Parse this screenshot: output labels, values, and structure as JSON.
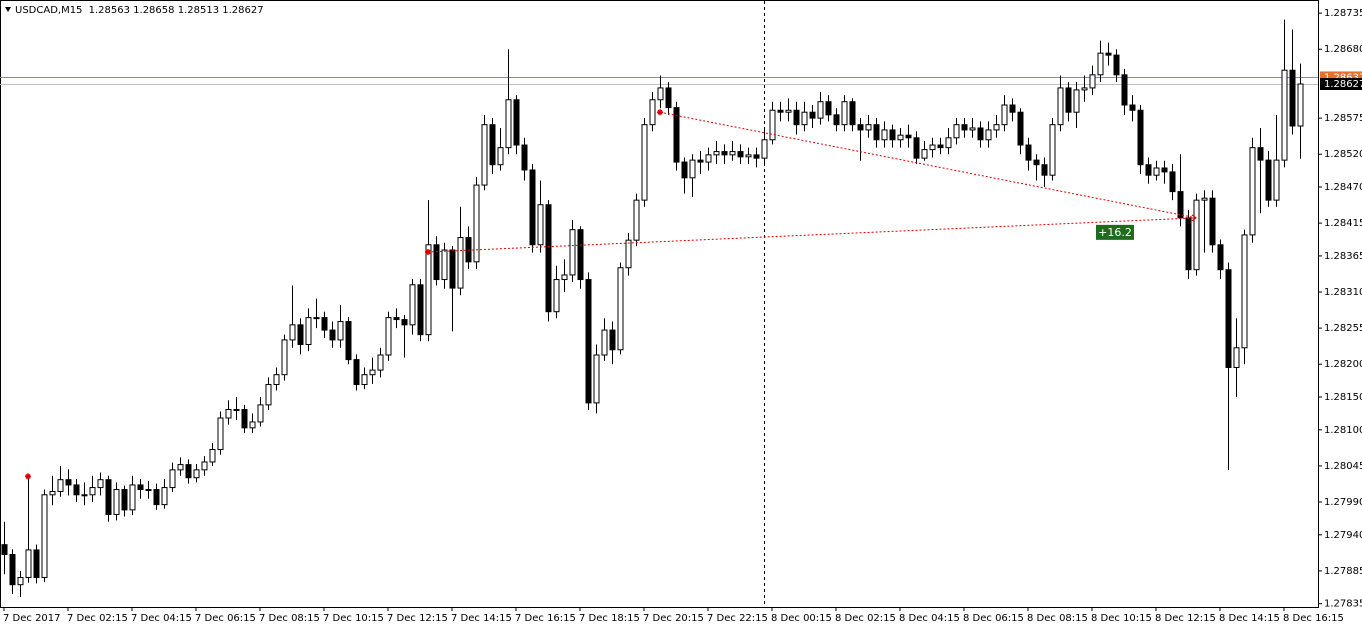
{
  "chart_data": {
    "type": "candlestick",
    "symbol": "USDCAD,M15",
    "categories": [
      "7 Dec 2017",
      null,
      null,
      null,
      null,
      null,
      null,
      null,
      "7 Dec 02:15",
      null,
      null,
      null,
      null,
      null,
      null,
      null,
      "7 Dec 04:15",
      null,
      null,
      null,
      null,
      null,
      null,
      null,
      "7 Dec 06:15",
      null,
      null,
      null,
      null,
      null,
      null,
      null,
      "7 Dec 08:15",
      null,
      null,
      null,
      null,
      null,
      null,
      null,
      "7 Dec 10:15",
      null,
      null,
      null,
      null,
      null,
      null,
      null,
      "7 Dec 12:15",
      null,
      null,
      null,
      null,
      null,
      null,
      null,
      "7 Dec 14:15",
      null,
      null,
      null,
      null,
      null,
      null,
      null,
      "7 Dec 16:15",
      null,
      null,
      null,
      null,
      null,
      null,
      null,
      "7 Dec 18:15",
      null,
      null,
      null,
      null,
      null,
      null,
      null,
      "7 Dec 20:15",
      null,
      null,
      null,
      null,
      null,
      null,
      null,
      "7 Dec 22:15",
      null,
      null,
      null,
      null,
      null,
      null,
      null,
      "8 Dec 00:15",
      null,
      null,
      null,
      null,
      null,
      null,
      null,
      "8 Dec 02:15",
      null,
      null,
      null,
      null,
      null,
      null,
      null,
      "8 Dec 04:15",
      null,
      null,
      null,
      null,
      null,
      null,
      null,
      "8 Dec 06:15",
      null,
      null,
      null,
      null,
      null,
      null,
      null,
      "8 Dec 08:15",
      null,
      null,
      null,
      null,
      null,
      null,
      null,
      "8 Dec 10:15",
      null,
      null,
      null,
      null,
      null,
      null,
      null,
      "8 Dec 12:15",
      null,
      null,
      null,
      null,
      null,
      null,
      null,
      "8 Dec 14:15",
      null,
      null,
      null,
      null,
      null,
      null,
      null,
      "8 Dec 16:15",
      null,
      null
    ],
    "open": [
      1.27925,
      1.2791,
      1.27864,
      1.27875,
      1.27917,
      1.27875,
      1.28001,
      1.28006,
      1.28024,
      1.28016,
      1.28001,
      1.28001,
      1.28012,
      1.28024,
      1.27971,
      1.28009,
      1.27978,
      1.28016,
      1.28009,
      1.28009,
      1.27986,
      1.28012,
      1.28039,
      1.28047,
      1.28027,
      1.28039,
      1.28051,
      1.2807,
      1.28118,
      1.28131,
      1.28131,
      1.28103,
      1.28112,
      1.28138,
      1.28169,
      1.28184,
      1.28237,
      1.2826,
      1.2823,
      1.28271,
      1.28271,
      1.28252,
      1.28237,
      1.28265,
      1.28207,
      1.28169,
      1.28184,
      1.28191,
      1.28214,
      1.28271,
      1.28268,
      1.2826,
      1.28321,
      1.28245,
      1.28382,
      1.28329,
      1.28374,
      1.28316,
      1.28393,
      1.28356,
      1.28473,
      1.28565,
      1.28504,
      1.2853,
      1.28603,
      1.28534,
      1.28496,
      1.28382,
      1.28443,
      1.2828,
      1.28329,
      1.28336,
      1.28405,
      1.28329,
      1.28141,
      1.28214,
      1.28252,
      1.28222,
      1.28347,
      1.28389,
      1.2845,
      1.28565,
      1.28603,
      1.28621,
      1.28591,
      1.28508,
      1.28484,
      1.28511,
      1.28508,
      1.28519,
      1.28524,
      1.28519,
      1.28524,
      1.28516,
      1.28519,
      1.28514,
      1.28542,
      1.28587,
      1.28584,
      1.28587,
      1.28565,
      1.28584,
      1.28575,
      1.286,
      1.2858,
      1.28565,
      1.286,
      1.28565,
      1.28557,
      1.28565,
      1.28542,
      1.28557,
      1.28542,
      1.28549,
      1.28545,
      1.28514,
      1.28527,
      1.28534,
      1.2853,
      1.28545,
      1.28565,
      1.28557,
      1.2856,
      1.28542,
      1.28557,
      1.28565,
      1.28595,
      1.28584,
      1.28534,
      1.28511,
      1.28504,
      1.28488,
      1.28565,
      1.28621,
      1.28584,
      1.28618,
      1.28621,
      1.28641,
      1.28674,
      1.28671,
      1.28641,
      1.28595,
      1.28587,
      1.28504,
      1.28488,
      1.28499,
      1.28493,
      1.28463,
      1.28423,
      1.28344,
      1.2845,
      1.28453,
      1.28382,
      1.28344,
      1.28195,
      1.28225,
      1.28397,
      1.2853,
      1.28511,
      1.2845,
      1.28511,
      1.28648,
      1.28563
    ],
    "high": [
      1.2796,
      1.27918,
      1.27885,
      1.28029,
      1.27925,
      1.28009,
      1.2803,
      1.28045,
      1.2804,
      1.28025,
      1.2802,
      1.2803,
      1.28035,
      1.2803,
      1.2802,
      1.28015,
      1.2803,
      1.28025,
      1.28022,
      1.28018,
      1.28025,
      1.2805,
      1.28058,
      1.28055,
      1.28048,
      1.2806,
      1.2808,
      1.28128,
      1.28145,
      1.2815,
      1.28138,
      1.28125,
      1.2815,
      1.2818,
      1.28195,
      1.28245,
      1.2832,
      1.2827,
      1.28285,
      1.283,
      1.2828,
      1.28265,
      1.2829,
      1.28272,
      1.28215,
      1.28195,
      1.2821,
      1.28225,
      1.2828,
      1.28285,
      1.28275,
      1.2833,
      1.2833,
      1.2845,
      1.28395,
      1.28385,
      1.2838,
      1.2844,
      1.2841,
      1.28485,
      1.2858,
      1.28575,
      1.2856,
      1.2868,
      1.2861,
      1.28545,
      1.28505,
      1.2848,
      1.2845,
      1.2835,
      1.2836,
      1.2842,
      1.2841,
      1.2834,
      1.2823,
      1.2827,
      1.28265,
      1.28355,
      1.284,
      1.2846,
      1.28575,
      1.28615,
      1.2864,
      1.2863,
      1.286,
      1.28515,
      1.2852,
      1.28525,
      1.2853,
      1.2854,
      1.28535,
      1.2854,
      1.28535,
      1.2853,
      1.2853,
      1.2856,
      1.286,
      1.286,
      1.28605,
      1.286,
      1.286,
      1.28595,
      1.28615,
      1.2861,
      1.2859,
      1.2861,
      1.28605,
      1.28575,
      1.2858,
      1.28575,
      1.2857,
      1.28565,
      1.2856,
      1.28565,
      1.28555,
      1.2854,
      1.28545,
      1.28545,
      1.2856,
      1.28575,
      1.28575,
      1.28575,
      1.2857,
      1.2857,
      1.2858,
      1.2861,
      1.28605,
      1.2859,
      1.28545,
      1.2852,
      1.28515,
      1.28575,
      1.2864,
      1.2863,
      1.2863,
      1.2864,
      1.28655,
      1.28693,
      1.2869,
      1.2868,
      1.2865,
      1.2861,
      1.28595,
      1.28515,
      1.2851,
      1.2851,
      1.28505,
      1.2852,
      1.28435,
      1.2846,
      1.28465,
      1.28465,
      1.2839,
      1.28355,
      1.2827,
      1.28405,
      1.28545,
      1.2856,
      1.28525,
      1.2858,
      1.28725,
      1.2871,
      1.28658
    ],
    "low": [
      1.2788,
      1.2785,
      1.27845,
      1.27867,
      1.27866,
      1.27868,
      1.27985,
      1.27998,
      1.28,
      1.2799,
      1.27985,
      1.2799,
      1.28,
      1.2796,
      1.27962,
      1.27968,
      1.2797,
      1.27995,
      1.27995,
      1.27978,
      1.2798,
      1.28005,
      1.2803,
      1.28018,
      1.2802,
      1.2803,
      1.28045,
      1.28062,
      1.28108,
      1.28115,
      1.28095,
      1.28095,
      1.28105,
      1.2813,
      1.2816,
      1.28175,
      1.28225,
      1.28215,
      1.2822,
      1.28255,
      1.2824,
      1.28225,
      1.28225,
      1.282,
      1.2816,
      1.28162,
      1.2817,
      1.2818,
      1.28205,
      1.28255,
      1.2821,
      1.28245,
      1.28235,
      1.28235,
      1.2832,
      1.28315,
      1.2825,
      1.28305,
      1.28345,
      1.28345,
      1.28465,
      1.2849,
      1.28495,
      1.2852,
      1.2852,
      1.2848,
      1.2837,
      1.2837,
      1.28265,
      1.2827,
      1.2831,
      1.28325,
      1.28315,
      1.2813,
      1.28125,
      1.28205,
      1.282,
      1.28215,
      1.28335,
      1.2838,
      1.2844,
      1.28555,
      1.2859,
      1.2858,
      1.28495,
      1.2846,
      1.28455,
      1.2849,
      1.28495,
      1.28505,
      1.28505,
      1.2851,
      1.28505,
      1.28505,
      1.285,
      1.28505,
      1.28535,
      1.2857,
      1.2857,
      1.2855,
      1.28555,
      1.2856,
      1.28565,
      1.2857,
      1.28555,
      1.28555,
      1.28555,
      1.2851,
      1.28545,
      1.2853,
      1.2853,
      1.2853,
      1.2853,
      1.2853,
      1.28505,
      1.2851,
      1.28515,
      1.2852,
      1.2852,
      1.28535,
      1.28545,
      1.28545,
      1.2853,
      1.2853,
      1.28545,
      1.28555,
      1.2857,
      1.2852,
      1.28495,
      1.2848,
      1.2847,
      1.2848,
      1.28555,
      1.2857,
      1.2856,
      1.286,
      1.2861,
      1.2863,
      1.28655,
      1.2863,
      1.2858,
      1.2857,
      1.2849,
      1.28475,
      1.2848,
      1.28475,
      1.2845,
      1.2841,
      1.2833,
      1.28335,
      1.2837,
      1.2837,
      1.2833,
      1.28039,
      1.2815,
      1.282,
      1.28385,
      1.2843,
      1.2844,
      1.2844,
      1.285,
      1.2855,
      1.28513
    ],
    "close": [
      1.2791,
      1.27864,
      1.27875,
      1.27917,
      1.27875,
      1.28001,
      1.28006,
      1.28024,
      1.28016,
      1.28001,
      1.28001,
      1.28012,
      1.28024,
      1.27971,
      1.28009,
      1.27978,
      1.28016,
      1.28009,
      1.28009,
      1.27986,
      1.28012,
      1.28039,
      1.28047,
      1.28027,
      1.28039,
      1.28051,
      1.2807,
      1.28118,
      1.28131,
      1.28131,
      1.28103,
      1.28112,
      1.28138,
      1.28169,
      1.28184,
      1.28237,
      1.2826,
      1.2823,
      1.28271,
      1.28271,
      1.28252,
      1.28237,
      1.28265,
      1.28207,
      1.28169,
      1.28184,
      1.28191,
      1.28214,
      1.28271,
      1.28268,
      1.2826,
      1.28321,
      1.28245,
      1.28382,
      1.28329,
      1.28374,
      1.28316,
      1.28393,
      1.28356,
      1.28473,
      1.28565,
      1.28504,
      1.2853,
      1.28603,
      1.28534,
      1.28496,
      1.28382,
      1.28443,
      1.2828,
      1.28329,
      1.28336,
      1.28405,
      1.28329,
      1.28141,
      1.28214,
      1.28252,
      1.28222,
      1.28347,
      1.28389,
      1.2845,
      1.28565,
      1.28603,
      1.28621,
      1.28591,
      1.28508,
      1.28484,
      1.28511,
      1.28508,
      1.28519,
      1.28524,
      1.28519,
      1.28524,
      1.28516,
      1.28519,
      1.28514,
      1.28542,
      1.28587,
      1.28584,
      1.28587,
      1.28565,
      1.28584,
      1.28575,
      1.286,
      1.2858,
      1.28565,
      1.286,
      1.28565,
      1.28557,
      1.28565,
      1.28542,
      1.28557,
      1.28542,
      1.28549,
      1.28545,
      1.28514,
      1.28527,
      1.28534,
      1.2853,
      1.28545,
      1.28565,
      1.28557,
      1.2856,
      1.28542,
      1.28557,
      1.28565,
      1.28595,
      1.28584,
      1.28534,
      1.28511,
      1.28504,
      1.28488,
      1.28565,
      1.28621,
      1.28584,
      1.28618,
      1.28621,
      1.28641,
      1.28674,
      1.28671,
      1.28641,
      1.28595,
      1.28587,
      1.28504,
      1.28488,
      1.28499,
      1.28493,
      1.28463,
      1.28423,
      1.28344,
      1.2845,
      1.28453,
      1.28382,
      1.28344,
      1.28195,
      1.28225,
      1.28397,
      1.2853,
      1.28511,
      1.2845,
      1.28511,
      1.28648,
      1.28563,
      1.28627
    ],
    "up_color": "#ffffff",
    "down_color": "#000000",
    "outline_color": "#000000",
    "ylim": [
      1.2783,
      1.28755
    ],
    "yticks": [
      1.28735,
      {
        "value": 1.2868,
        "label": "1.28680"
      },
      1.28575,
      {
        "value": 1.2852,
        "label": "1.28520"
      },
      {
        "value": 1.2847,
        "label": "1.28470"
      },
      1.28415,
      1.28365,
      {
        "value": 1.2831,
        "label": "1.28310"
      },
      1.28255,
      {
        "value": 1.282,
        "label": "1.28200"
      },
      {
        "value": 1.2815,
        "label": "1.28150"
      },
      {
        "value": 1.281,
        "label": "1.28100"
      },
      1.28045,
      {
        "value": 1.2799,
        "label": "1.27990"
      },
      {
        "value": 1.2794,
        "label": "1.27940"
      },
      1.27885,
      1.27835
    ],
    "grid": false,
    "separator_index": 95,
    "price_lines": [
      {
        "value": 1.28637,
        "color": "#e8702a"
      },
      {
        "value": 1.28627,
        "color": "#c0c0c0"
      }
    ],
    "trade_lines": [
      {
        "from_index": 53,
        "from_price": 1.28371,
        "to_index": 149,
        "to_price": 1.28423,
        "label": "+16.2"
      },
      {
        "from_index": 82,
        "from_price": 1.28584,
        "to_index": 149,
        "to_price": 1.28423
      }
    ],
    "arrows": [
      {
        "index": 3,
        "price": 1.28029
      }
    ]
  }
}
